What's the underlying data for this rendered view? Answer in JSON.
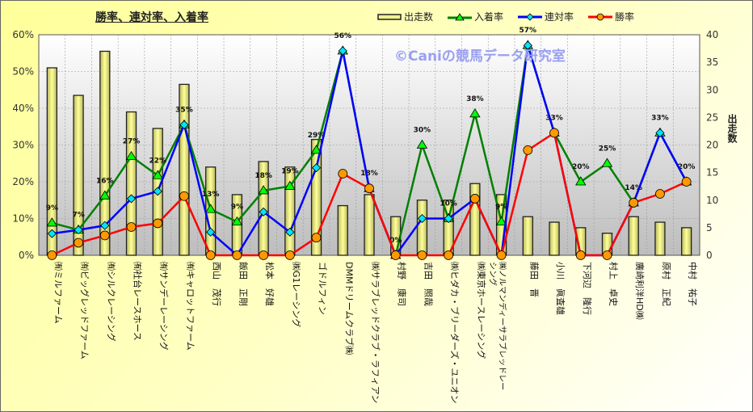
{
  "chart_data": {
    "type": "bar+line",
    "title": "勝率、連対率、入着率",
    "watermark": "©Caniの競馬データ研究室",
    "ylabel": "",
    "y2label": "出走数",
    "ylim": [
      0,
      60
    ],
    "y2lim": [
      0,
      40
    ],
    "yticks": [
      "0%",
      "10%",
      "20%",
      "30%",
      "40%",
      "50%",
      "60%"
    ],
    "y2ticks": [
      "0",
      "5",
      "10",
      "15",
      "20",
      "25",
      "30",
      "35",
      "40"
    ],
    "grid": true,
    "legend_position": "top-right",
    "categories": [
      "㈲ミルファーム",
      "㈲ビッグレッドファーム",
      "㈲シルクレーシング",
      "㈲社台レースホース",
      "㈲サンデーレーシング",
      "㈲キャロットファーム",
      "西山　茂行",
      "飯田　正剛",
      "松本　好雄",
      "㈱G1レーシング",
      "ゴドルフィン",
      "DMMドリームクラブ㈱",
      "㈱サラブレッドクラブ・ラフィアン",
      "村野　康司",
      "吉田　照哉",
      "㈱ヒダカ・ブリーダーズ・ユニオン",
      "㈱東京ホースレーシング",
      "㈱ノルマンディーサラブレッドレーシング",
      "藤田　晋",
      "小川　眞査雄",
      "下河辺　隆行",
      "村上　卓史",
      "廣崎利洋HD㈱",
      "原村　正紀",
      "中村　祐子"
    ],
    "series": [
      {
        "name": "出走数",
        "type": "bar",
        "axis": "right",
        "color": "#f0f090",
        "values": [
          34,
          29,
          37,
          26,
          23,
          31,
          16,
          11,
          17,
          16,
          21,
          9,
          11,
          7,
          10,
          10,
          13,
          11,
          7,
          6,
          5,
          4,
          7,
          6,
          5
        ]
      },
      {
        "name": "入着率",
        "type": "line",
        "color": "#008000",
        "marker": "triangle",
        "marker_color": "#00ff00",
        "values": [
          8.8,
          6.9,
          16.2,
          26.9,
          21.7,
          35.5,
          12.5,
          9.1,
          17.6,
          18.8,
          28.6,
          55.6,
          18.2,
          0,
          30,
          10,
          38.5,
          9.1,
          57.1,
          33.3,
          20,
          25,
          14.3,
          33.3,
          20
        ],
        "labels": [
          "9%",
          "7%",
          "16%",
          "27%",
          "22%",
          "35%",
          "13%",
          "9%",
          "18%",
          "19%",
          "29%",
          "56%",
          "18%",
          "0%",
          "30%",
          "10%",
          "38%",
          "9%",
          "57%",
          "33%",
          "20%",
          "25%",
          "14%",
          "33%",
          "20%"
        ]
      },
      {
        "name": "連対率",
        "type": "line",
        "color": "#0000ff",
        "marker": "diamond",
        "marker_color": "#00e5ff",
        "values": [
          5.9,
          6.9,
          8.1,
          15.4,
          17.4,
          35.5,
          6.3,
          0,
          11.8,
          6.3,
          23.8,
          55.6,
          18.2,
          0,
          10,
          10,
          15.4,
          0,
          57.1,
          33.3,
          0,
          0,
          14.3,
          33.3,
          20
        ]
      },
      {
        "name": "勝率",
        "type": "line",
        "color": "#ff0000",
        "marker": "circle",
        "marker_color": "#ff9900",
        "values": [
          0,
          3.4,
          5.4,
          7.7,
          8.7,
          16.1,
          0,
          0,
          0,
          0,
          4.8,
          22.2,
          18.2,
          0,
          0,
          0,
          15.4,
          0,
          28.6,
          33.3,
          0,
          0,
          14.3,
          16.7,
          20
        ]
      }
    ]
  }
}
